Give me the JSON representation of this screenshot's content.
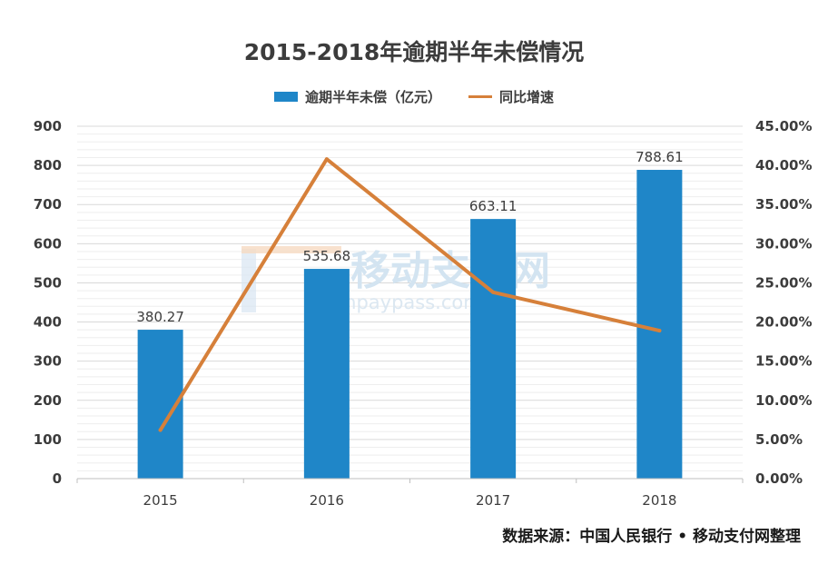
{
  "chart_data": {
    "type": "bar",
    "title": "2015-2018年逾期半年未偿情况",
    "categories": [
      "2015",
      "2016",
      "2017",
      "2018"
    ],
    "series": [
      {
        "name": "逾期半年未偿（亿元）",
        "type": "bar",
        "axis": "left",
        "color": "#1f86c8",
        "values": [
          380.27,
          535.68,
          663.11,
          788.61
        ],
        "labels": [
          "380.27",
          "535.68",
          "663.11",
          "788.61"
        ]
      },
      {
        "name": "同比增速",
        "type": "line",
        "axis": "right",
        "color": "#d6803a",
        "values": [
          6.2,
          40.8,
          23.8,
          18.9
        ]
      }
    ],
    "ylim": [
      0,
      900
    ],
    "y_ticks": [
      "0",
      "100",
      "200",
      "300",
      "400",
      "500",
      "600",
      "700",
      "800",
      "900"
    ],
    "y2lim": [
      0,
      45
    ],
    "y2_ticks": [
      "0.00%",
      "5.00%",
      "10.00%",
      "15.00%",
      "20.00%",
      "25.00%",
      "30.00%",
      "35.00%",
      "40.00%",
      "45.00%"
    ],
    "grid": true,
    "legend_position": "top"
  },
  "source": "数据来源：中国人民银行 • 移动支付网整理",
  "watermark": {
    "logo": "移动支付网",
    "url": "mpaypass.com.cn"
  }
}
